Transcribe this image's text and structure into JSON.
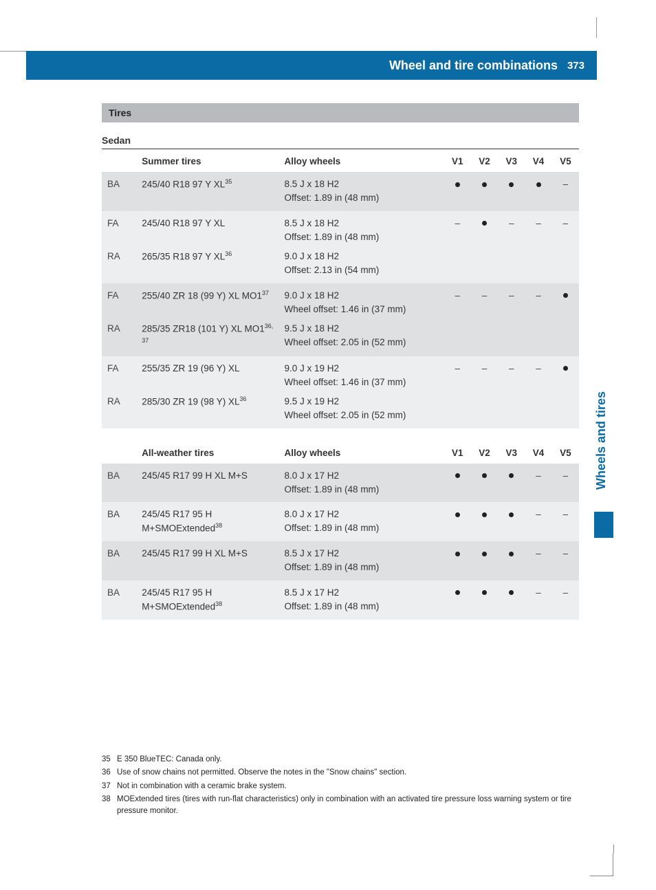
{
  "header": {
    "title": "Wheel and tire combinations",
    "page": "373"
  },
  "thumb_tab": "Wheels and tires",
  "section": {
    "tires": "Tires",
    "sedan": "Sedan"
  },
  "summer": {
    "headers": {
      "c1": "Summer tires",
      "c2": "Alloy wheels",
      "v": [
        "V1",
        "V2",
        "V3",
        "V4",
        "V5"
      ]
    },
    "groups": [
      {
        "rows": [
          {
            "axle": "BA",
            "tire": "245/40 R18 97 Y XL",
            "tire_sup": "35",
            "wheel": "8.5 J x 18 H2\nOffset: 1.89 in (48 mm)"
          }
        ],
        "dots": [
          "•",
          "•",
          "•",
          "•",
          "–"
        ]
      },
      {
        "rows": [
          {
            "axle": "FA",
            "tire": "245/40 R18 97 Y XL",
            "tire_sup": "",
            "wheel": "8.5 J x 18 H2\nOffset: 1.89 in (48 mm)"
          },
          {
            "axle": "RA",
            "tire": "265/35 R18 97 Y XL",
            "tire_sup": "36",
            "wheel": "9.0 J x 18 H2\nOffset: 2.13 in (54 mm)"
          }
        ],
        "dots": [
          "–",
          "•",
          "–",
          "–",
          "–"
        ]
      },
      {
        "rows": [
          {
            "axle": "FA",
            "tire": "255/40 ZR 18 (99 Y) XL MO1",
            "tire_sup": "37",
            "wheel": "9.0 J x 18 H2\nWheel offset: 1.46 in (37 mm)"
          },
          {
            "axle": "RA",
            "tire": "285/35 ZR18 (101 Y) XL MO1",
            "tire_sup": "36, 37",
            "wheel": "9.5 J x 18 H2\nWheel offset: 2.05 in (52 mm)"
          }
        ],
        "dots": [
          "–",
          "–",
          "–",
          "–",
          "•"
        ]
      },
      {
        "rows": [
          {
            "axle": "FA",
            "tire": "255/35 ZR 19 (96 Y) XL",
            "tire_sup": "",
            "wheel": "9.0 J x 19 H2\nWheel offset: 1.46 in (37 mm)"
          },
          {
            "axle": "RA",
            "tire": "285/30 ZR 19 (98 Y) XL",
            "tire_sup": "36",
            "wheel": "9.5 J x 19 H2\nWheel offset: 2.05 in (52 mm)"
          }
        ],
        "dots": [
          "–",
          "–",
          "–",
          "–",
          "•"
        ]
      }
    ]
  },
  "allweather": {
    "headers": {
      "c1": "All-weather tires",
      "c2": "Alloy wheels",
      "v": [
        "V1",
        "V2",
        "V3",
        "V4",
        "V5"
      ]
    },
    "groups": [
      {
        "rows": [
          {
            "axle": "BA",
            "tire": "245/45 R17 99 H XL M+S",
            "tire_sup": "",
            "wheel": "8.0 J x 17 H2\nOffset: 1.89 in (48 mm)"
          }
        ],
        "dots": [
          "•",
          "•",
          "•",
          "–",
          "–"
        ]
      },
      {
        "rows": [
          {
            "axle": "BA",
            "tire": "245/45 R17 95 H M+SMOExtended",
            "tire_sup": "38",
            "wheel": "8.0 J x 17 H2\nOffset: 1.89 in (48 mm)"
          }
        ],
        "dots": [
          "•",
          "•",
          "•",
          "–",
          "–"
        ]
      },
      {
        "rows": [
          {
            "axle": "BA",
            "tire": "245/45 R17 99 H XL M+S",
            "tire_sup": "",
            "wheel": "8.5 J x 17 H2\nOffset: 1.89 in (48 mm)"
          }
        ],
        "dots": [
          "•",
          "•",
          "•",
          "–",
          "–"
        ]
      },
      {
        "rows": [
          {
            "axle": "BA",
            "tire": "245/45 R17 95 H M+SMOExtended",
            "tire_sup": "38",
            "wheel": "8.5 J x 17 H2\nOffset: 1.89 in (48 mm)"
          }
        ],
        "dots": [
          "•",
          "•",
          "•",
          "–",
          "–"
        ]
      }
    ]
  },
  "footnotes": [
    {
      "n": "35",
      "t": "E 350 BlueTEC: Canada only."
    },
    {
      "n": "36",
      "t": "Use of snow chains not permitted. Observe the notes in the \"Snow chains\" section."
    },
    {
      "n": "37",
      "t": "Not in combination with a ceramic brake system."
    },
    {
      "n": "38",
      "t": "MOExtended tires (tires with run-flat characteristics) only in combination with an activated tire pressure loss warning system or tire pressure monitor."
    }
  ]
}
